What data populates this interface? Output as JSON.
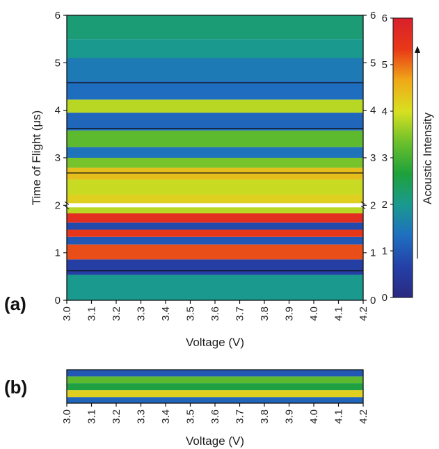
{
  "chart_data": [
    {
      "panel_label": "(a)",
      "type": "heatmap",
      "title": "",
      "xlabel": "Voltage (V)",
      "ylabel": "Time of Flight (μs)",
      "xlim": [
        3.0,
        4.2
      ],
      "ylim": [
        0,
        6
      ],
      "x_ticks": [
        "3.0",
        "3.1",
        "3.2",
        "3.3",
        "3.4",
        "3.5",
        "3.6",
        "3.7",
        "3.8",
        "3.9",
        "4.0",
        "4.1",
        "4.2"
      ],
      "y_ticks": [
        "0",
        "1",
        "2",
        "3",
        "4",
        "5",
        "6"
      ],
      "right_y_ticks": [
        "0",
        "1",
        "2",
        "3",
        "4",
        "5",
        "6"
      ],
      "axis_break_tof": 2.0,
      "colorbar": {
        "label": "Acoustic Intensity",
        "ticks": [
          "0",
          "1",
          "2",
          "3",
          "4",
          "5",
          "6"
        ],
        "range": [
          0,
          6
        ],
        "colors": [
          "#2a2a80",
          "#2440a8",
          "#1f6fc0",
          "#1a9a8e",
          "#1fa13a",
          "#6cc02c",
          "#d8e020",
          "#f0a818",
          "#e83818",
          "#d8202c"
        ]
      },
      "bands": [
        {
          "tof": 0.45,
          "intensity": 2.0
        },
        {
          "tof": 0.62,
          "intensity": 0.6
        },
        {
          "tof": 1.1,
          "intensity": 5.2
        },
        {
          "tof": 1.25,
          "intensity": 1.0
        },
        {
          "tof": 1.42,
          "intensity": 5.4
        },
        {
          "tof": 1.55,
          "intensity": 0.8
        },
        {
          "tof": 1.72,
          "intensity": 5.6
        },
        {
          "tof": 1.94,
          "intensity": 3.8
        },
        {
          "tof": 2.05,
          "intensity": 4.2
        },
        {
          "tof": 2.4,
          "intensity": 3.9
        },
        {
          "tof": 2.68,
          "intensity": 4.4
        },
        {
          "tof": 2.9,
          "intensity": 3.4
        },
        {
          "tof": 3.1,
          "intensity": 1.4
        },
        {
          "tof": 3.35,
          "intensity": 3.2
        },
        {
          "tof": 3.8,
          "intensity": 1.2
        },
        {
          "tof": 4.1,
          "intensity": 3.8
        },
        {
          "tof": 4.35,
          "intensity": 1.3
        },
        {
          "tof": 4.9,
          "intensity": 1.5
        },
        {
          "tof": 5.3,
          "intensity": 2.0
        },
        {
          "tof": 5.7,
          "intensity": 2.2
        }
      ],
      "reference_lines_tof": [
        0.62,
        2.68,
        3.62,
        4.58
      ]
    },
    {
      "panel_label": "(b)",
      "type": "heatmap",
      "title": "",
      "xlabel": "Voltage (V)",
      "xlim": [
        3.0,
        4.2
      ],
      "x_ticks": [
        "3.0",
        "3.1",
        "3.2",
        "3.3",
        "3.4",
        "3.5",
        "3.6",
        "3.7",
        "3.8",
        "3.9",
        "4.0",
        "4.1",
        "4.2"
      ],
      "bands": [
        {
          "position": 0.1,
          "intensity": 1.0
        },
        {
          "position": 0.3,
          "intensity": 3.2
        },
        {
          "position": 0.5,
          "intensity": 2.6
        },
        {
          "position": 0.72,
          "intensity": 4.2
        },
        {
          "position": 0.92,
          "intensity": 1.2
        }
      ]
    }
  ]
}
